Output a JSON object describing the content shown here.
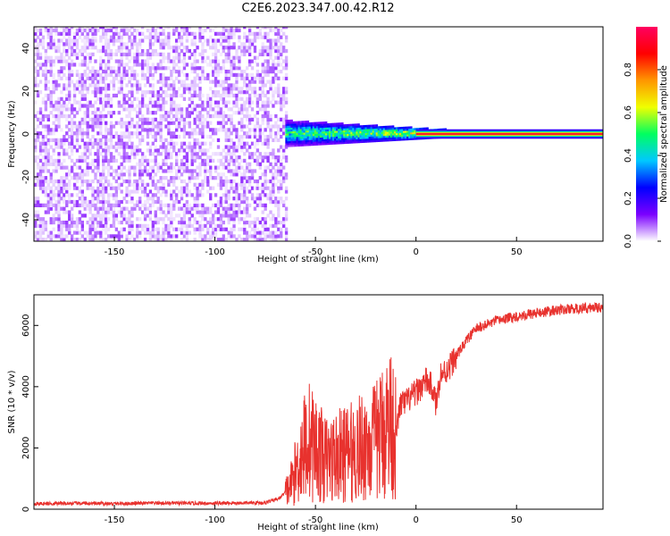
{
  "title": "C2E6.2023.347.00.42.R12",
  "chart_data": [
    {
      "type": "heatmap",
      "xlabel": "Height of straight line (km)",
      "ylabel": "Frequency (Hz)",
      "xlim": [
        -190,
        93
      ],
      "ylim": [
        -50,
        50
      ],
      "xticks": [
        -150,
        -100,
        -50,
        0,
        50
      ],
      "yticks": [
        -40,
        -20,
        0,
        20,
        40
      ],
      "grid": false,
      "colorbar": {
        "label": "Normalized spectral amplitude",
        "range": [
          0,
          1
        ],
        "ticks": [
          0.0,
          0.2,
          0.4,
          0.6,
          0.8
        ],
        "colormap": [
          "#ffffff",
          "#7b00ff",
          "#0000ff",
          "#00c8ff",
          "#00ff60",
          "#f0ff00",
          "#ff9600",
          "#ff0000",
          "#ff0060"
        ]
      },
      "regions": [
        {
          "x_range": [
            -190,
            -65
          ],
          "description": "broadband noise across all frequencies, amplitude ~0.05"
        },
        {
          "x_range": [
            -65,
            20
          ],
          "description": "signal emerging near 0 Hz, amplitude ~0.3-0.5, spread about ±5 Hz"
        },
        {
          "x_range": [
            20,
            93
          ],
          "description": "narrow line at 0 Hz, amplitude ~0.9-1.0"
        }
      ]
    },
    {
      "type": "line",
      "xlabel": "Height of straight line (km)",
      "ylabel": "SNR (10 * v/v)",
      "xlim": [
        -190,
        93
      ],
      "ylim": [
        0,
        7000
      ],
      "xticks": [
        -150,
        -100,
        -50,
        0,
        50
      ],
      "yticks": [
        0,
        2000,
        4000,
        6000
      ],
      "grid": false,
      "series": [
        {
          "color": "#e8322e",
          "x": [
            -190,
            -170,
            -150,
            -130,
            -110,
            -90,
            -75,
            -68,
            -63,
            -60,
            -57,
            -54,
            -50,
            -45,
            -40,
            -35,
            -30,
            -25,
            -20,
            -15,
            -12,
            -10,
            -8,
            -5,
            0,
            5,
            8,
            10,
            12,
            15,
            20,
            25,
            30,
            40,
            50,
            60,
            70,
            80,
            93
          ],
          "values": [
            180,
            190,
            180,
            200,
            190,
            200,
            210,
            350,
            700,
            1200,
            1800,
            2300,
            2000,
            1600,
            1700,
            1800,
            1900,
            2100,
            2200,
            2700,
            2900,
            2300,
            3400,
            3500,
            3800,
            4200,
            4000,
            3400,
            4400,
            4500,
            5000,
            5500,
            5900,
            6150,
            6300,
            6400,
            6500,
            6550,
            6600
          ]
        }
      ]
    }
  ]
}
